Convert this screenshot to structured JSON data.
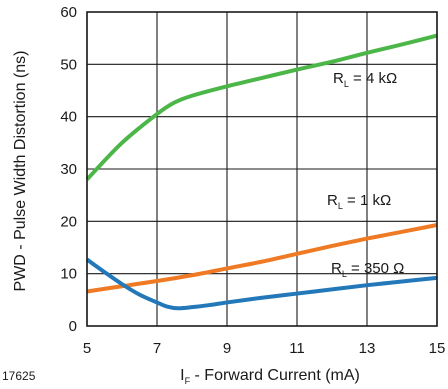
{
  "chart_data": {
    "type": "line",
    "figure_id": "17625",
    "xlabel": {
      "main": "I",
      "sub": "F",
      "rest": " - Forward Current (mA)"
    },
    "ylabel": "PWD - Pulse Width Distortion (ns)",
    "xlim": [
      5,
      15
    ],
    "ylim": [
      0,
      60
    ],
    "xticks": [
      "5",
      "7",
      "9",
      "11",
      "13",
      "15"
    ],
    "yticks": [
      "0",
      "10",
      "20",
      "30",
      "40",
      "50",
      "60"
    ],
    "grid": true,
    "series": [
      {
        "name": "R_L = 4 kΩ",
        "label_main": "R",
        "label_sub": "L",
        "label_rest": " = 4 kΩ",
        "color": "#4cb748",
        "x": [
          5,
          6,
          7,
          7.5,
          8,
          9,
          10,
          11,
          12,
          13,
          14,
          15
        ],
        "y": [
          28,
          35,
          40.5,
          42.7,
          44,
          45.8,
          47.4,
          49,
          50.5,
          52.2,
          53.8,
          55.5
        ]
      },
      {
        "name": "R_L = 1 kΩ",
        "label_main": "R",
        "label_sub": "L",
        "label_rest": " = 1 kΩ",
        "color": "#f07a24",
        "x": [
          5,
          6,
          7,
          8,
          9,
          10,
          11,
          12,
          13,
          14,
          15
        ],
        "y": [
          6.6,
          7.6,
          8.6,
          9.7,
          11,
          12.3,
          13.8,
          15.3,
          16.7,
          18,
          19.3
        ]
      },
      {
        "name": "R_L = 350 Ω",
        "label_main": "R",
        "label_sub": "L",
        "label_rest": " = 350 Ω",
        "color": "#2278b8",
        "x": [
          5,
          5.5,
          6,
          6.5,
          7,
          7.3,
          7.6,
          8,
          8.5,
          9,
          10,
          11,
          12,
          13,
          14,
          15
        ],
        "y": [
          12.7,
          10.3,
          8,
          6,
          4.5,
          3.7,
          3.4,
          3.6,
          4,
          4.5,
          5.4,
          6.2,
          7,
          7.8,
          8.5,
          9.2
        ]
      }
    ]
  }
}
